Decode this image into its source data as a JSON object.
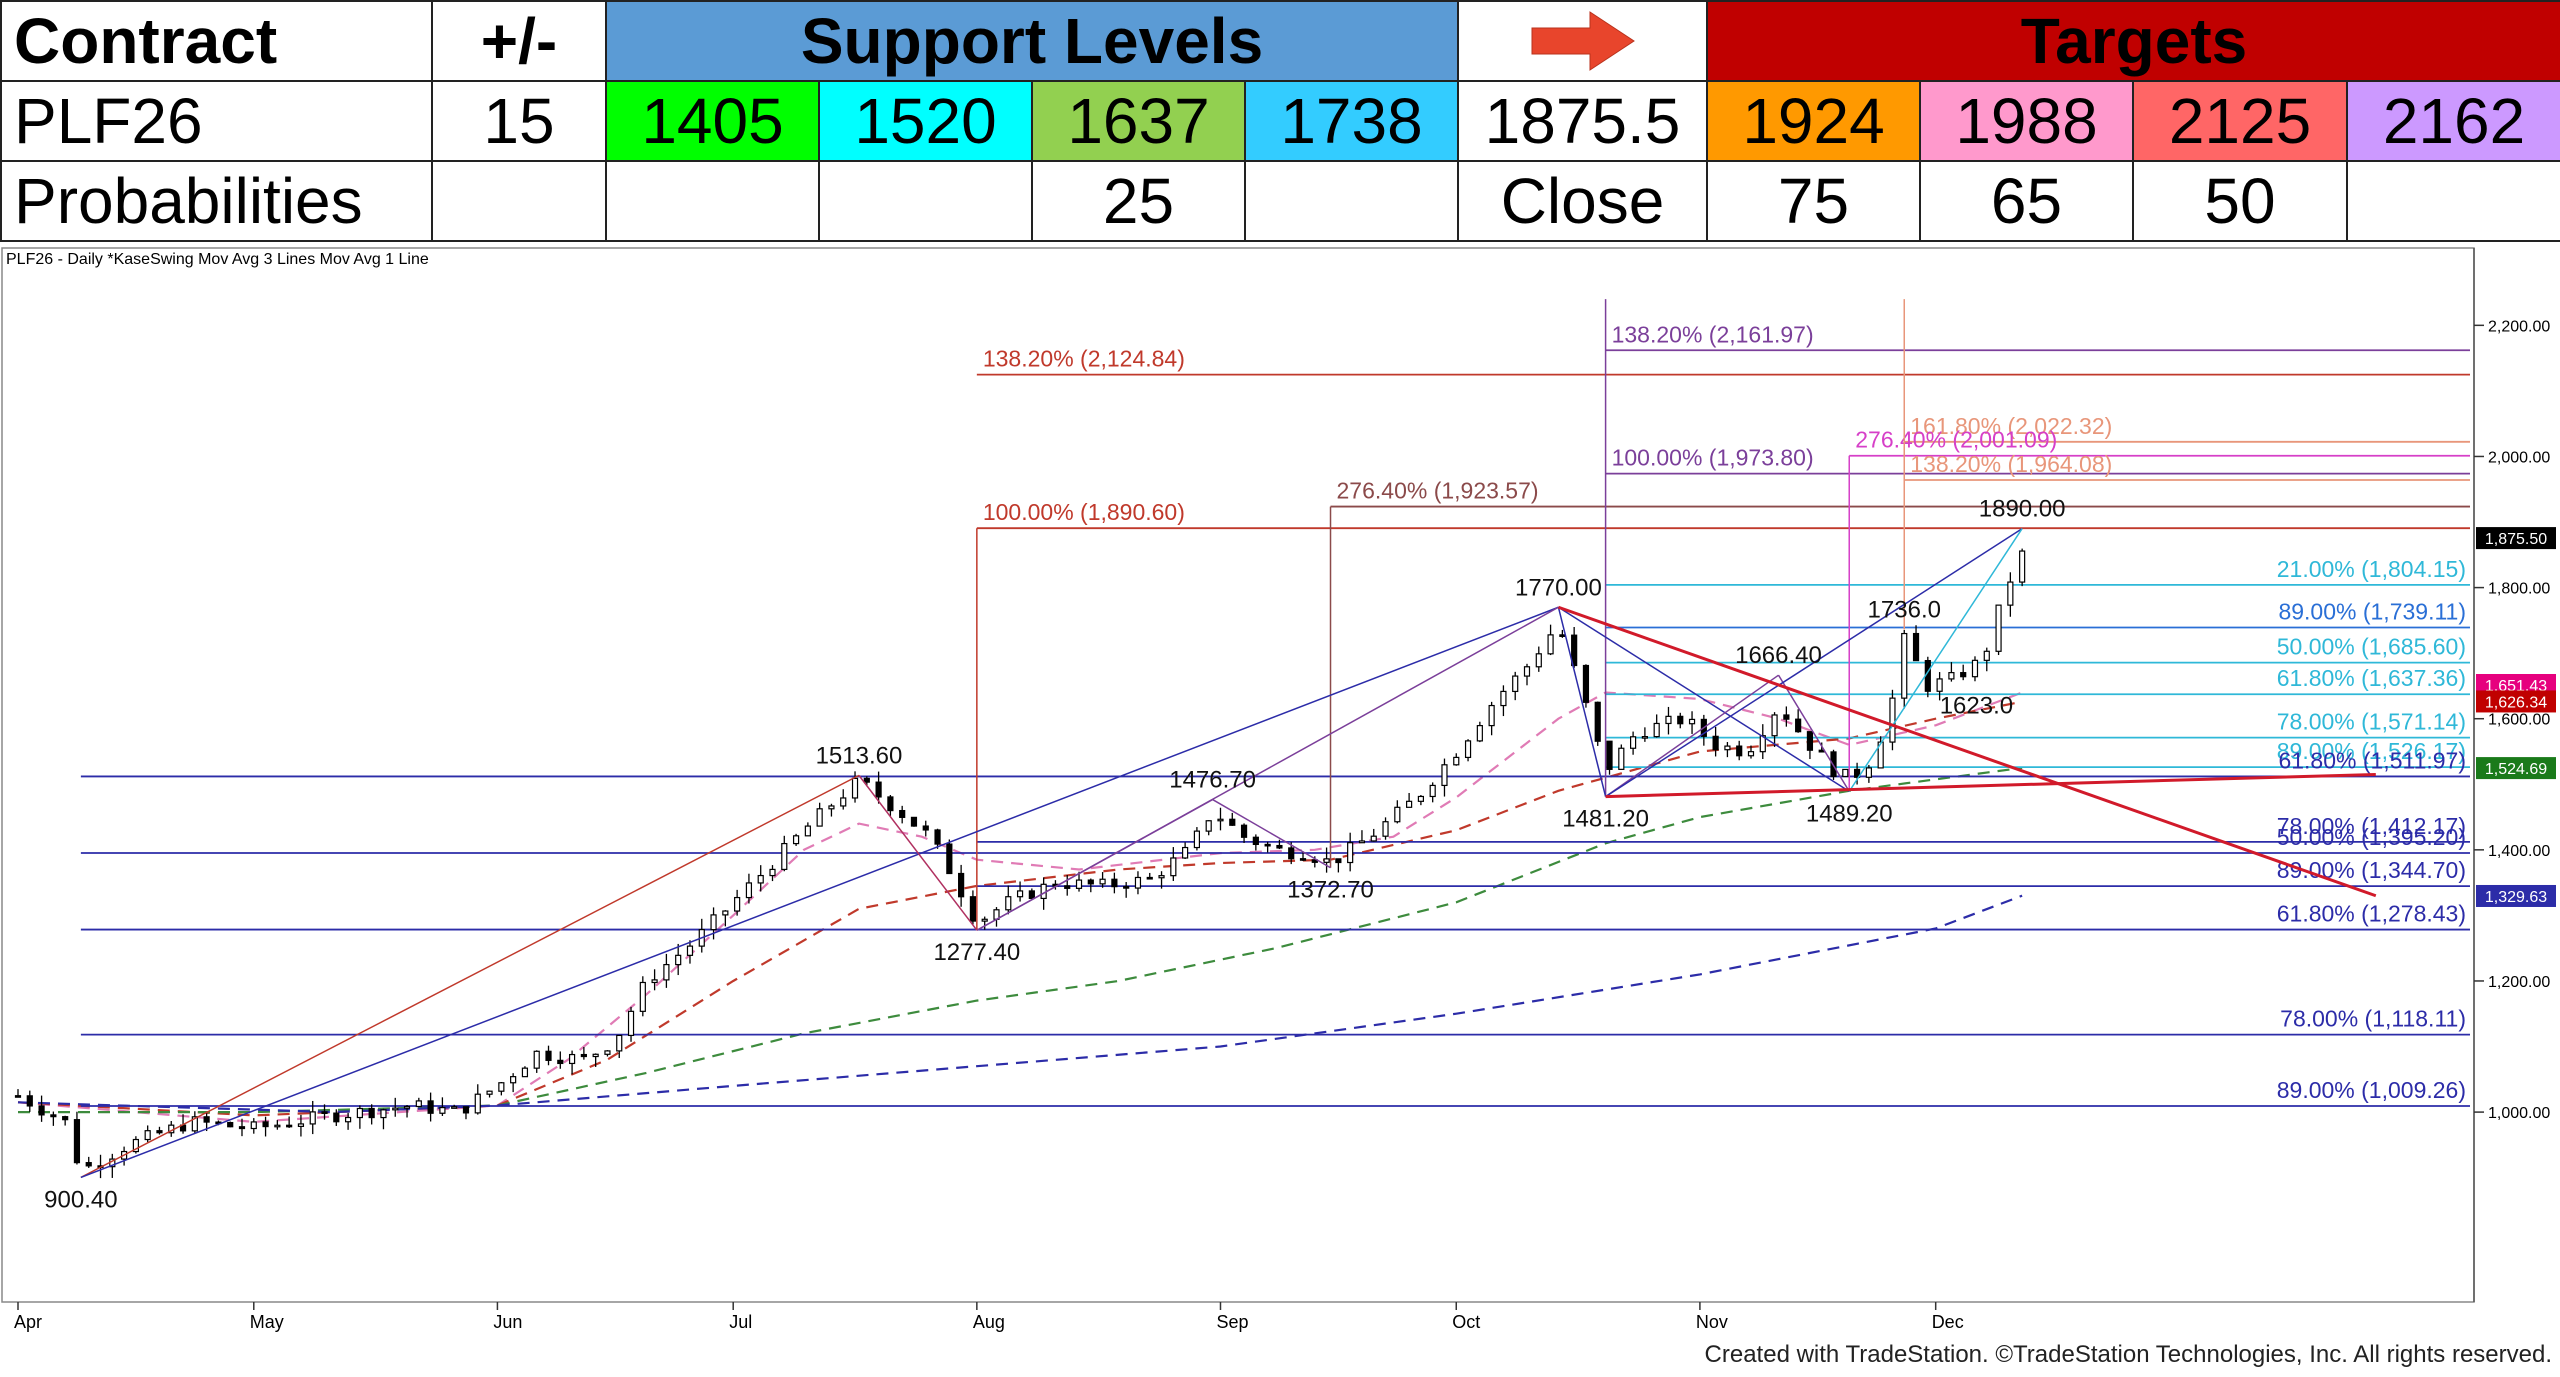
{
  "header": {
    "contract_label": "Contract",
    "plusminus_label": "+/-",
    "support_label": "Support Levels",
    "targets_label": "Targets",
    "arrow_icon": "right-arrow-icon",
    "contract": "PLF26",
    "change": "15",
    "supports": [
      "1405",
      "1520",
      "1637",
      "1738"
    ],
    "close_value": "1875.5",
    "targets": [
      "1924",
      "1988",
      "2125",
      "2162"
    ],
    "prob_label": "Probabilities",
    "support_probs": [
      "",
      "",
      "25",
      ""
    ],
    "close_label": "Close",
    "target_probs": [
      "75",
      "65",
      "50",
      ""
    ],
    "colors": {
      "support_band": "#5b9bd5",
      "targets_band": "#c00000",
      "supports": [
        "#00ff00",
        "#00ffff",
        "#92d050",
        "#33ccff"
      ],
      "targets": [
        "#ff9900",
        "#ff99cc",
        "#ff6666",
        "#cc99ff"
      ],
      "arrow": "#e8452c"
    }
  },
  "chart_data": {
    "type": "candlestick",
    "title": "PLF26 - Daily  *KaseSwing  Mov Avg 3 Lines  Mov Avg 1 Line",
    "footer": "Created with TradeStation. ©TradeStation Technologies, Inc. All rights reserved.",
    "ylim": [
      750,
      2260
    ],
    "y_ticks": [
      {
        "value": 1000,
        "label": "1,000.00"
      },
      {
        "value": 1200,
        "label": "1,200.00"
      },
      {
        "value": 1400,
        "label": "1,400.00"
      },
      {
        "value": 1600,
        "label": "1,600.00"
      },
      {
        "value": 1800,
        "label": "1,800.00"
      },
      {
        "value": 2000,
        "label": "2,000.00"
      },
      {
        "value": 2200,
        "label": "2,200.00"
      }
    ],
    "x_months": [
      {
        "label": "Apr",
        "day": 0
      },
      {
        "label": "May",
        "day": 30
      },
      {
        "label": "Jun",
        "day": 61
      },
      {
        "label": "Jul",
        "day": 91
      },
      {
        "label": "Aug",
        "day": 122
      },
      {
        "label": "Sep",
        "day": 153
      },
      {
        "label": "Oct",
        "day": 183
      },
      {
        "label": "Nov",
        "day": 214
      },
      {
        "label": "Dec",
        "day": 244
      }
    ],
    "last_day": 256,
    "price_badges": [
      {
        "value": 1875.5,
        "label": "1,875.50",
        "color": "#000000"
      },
      {
        "value": 1651.43,
        "label": "1,651.43",
        "color": "#e6007e"
      },
      {
        "value": 1626.34,
        "label": "1,626.34",
        "color": "#c00000"
      },
      {
        "value": 1524.69,
        "label": "1,524.69",
        "color": "#1a7a1a"
      },
      {
        "value": 1329.63,
        "label": "1,329.63",
        "color": "#2c2ca8"
      }
    ],
    "swing_labels": [
      {
        "day": 8,
        "value": 900.4,
        "label": "900.40",
        "pos": "below"
      },
      {
        "day": 107,
        "value": 1513.6,
        "label": "1513.60",
        "pos": "above"
      },
      {
        "day": 122,
        "value": 1277.4,
        "label": "1277.40",
        "pos": "below"
      },
      {
        "day": 152,
        "value": 1476.7,
        "label": "1476.70",
        "pos": "above"
      },
      {
        "day": 167,
        "value": 1372.7,
        "label": "1372.70",
        "pos": "below"
      },
      {
        "day": 196,
        "value": 1770.0,
        "label": "1770.00",
        "pos": "above"
      },
      {
        "day": 202,
        "value": 1481.2,
        "label": "1481.20",
        "pos": "below"
      },
      {
        "day": 224,
        "value": 1666.4,
        "label": "1666.40",
        "pos": "above"
      },
      {
        "day": 233,
        "value": 1489.2,
        "label": "1489.20",
        "pos": "below"
      },
      {
        "day": 240,
        "value": 1736.0,
        "label": "1736.0",
        "pos": "above"
      },
      {
        "day": 244,
        "value": 1623.0,
        "label": "1623.0",
        "pos": "right"
      },
      {
        "day": 255,
        "value": 1890.0,
        "label": "1890.00",
        "pos": "above"
      }
    ],
    "fib_levels": [
      {
        "value": 2161.97,
        "label": "138.20% (2,161.97)",
        "color": "#7b3f9a",
        "start_day": 202,
        "anchor": "left"
      },
      {
        "value": 2124.84,
        "label": "138.20% (2,124.84)",
        "color": "#c0392b",
        "start_day": 122,
        "anchor": "left"
      },
      {
        "value": 2022.32,
        "label": "161.80% (2,022.32)",
        "color": "#e8967a",
        "start_day": 240,
        "anchor": "left"
      },
      {
        "value": 2001.09,
        "label": "276.40% (2,001.09)",
        "color": "#d63fc8",
        "start_day": 233,
        "anchor": "left"
      },
      {
        "value": 1973.8,
        "label": "100.00% (1,973.80)",
        "color": "#7b3f9a",
        "start_day": 202,
        "anchor": "left"
      },
      {
        "value": 1964.08,
        "label": "138.20% (1,964.08)",
        "color": "#e8967a",
        "start_day": 240,
        "anchor": "left"
      },
      {
        "value": 1923.57,
        "label": "276.40% (1,923.57)",
        "color": "#8b4a4a",
        "start_day": 167,
        "anchor": "left"
      },
      {
        "value": 1890.6,
        "label": "100.00% (1,890.60)",
        "color": "#c0392b",
        "start_day": 122,
        "anchor": "left"
      },
      {
        "value": 1804.15,
        "label": "21.00% (1,804.15)",
        "color": "#2fb8d8",
        "start_day": 202,
        "anchor": "right"
      },
      {
        "value": 1739.11,
        "label": "89.00% (1,739.11)",
        "color": "#2a6fd6",
        "start_day": 202,
        "anchor": "right"
      },
      {
        "value": 1685.6,
        "label": "50.00% (1,685.60)",
        "color": "#2fb8d8",
        "start_day": 202,
        "anchor": "right"
      },
      {
        "value": 1637.36,
        "label": "61.80% (1,637.36)",
        "color": "#2fb8d8",
        "start_day": 202,
        "anchor": "right"
      },
      {
        "value": 1571.14,
        "label": "78.00% (1,571.14)",
        "color": "#2fb8d8",
        "start_day": 202,
        "anchor": "right"
      },
      {
        "value": 1526.17,
        "label": "89.00% (1,526.17)",
        "color": "#2fb8d8",
        "start_day": 202,
        "anchor": "right"
      },
      {
        "value": 1511.97,
        "label": "61.80% (1,511.97)",
        "color": "#2c2ca8",
        "start_day": 8,
        "anchor": "right"
      },
      {
        "value": 1412.17,
        "label": "78.00% (1,412.17)",
        "color": "#2c2ca8",
        "start_day": 122,
        "anchor": "right"
      },
      {
        "value": 1395.2,
        "label": "50.00% (1,395.20)",
        "color": "#2c2ca8",
        "start_day": 8,
        "anchor": "right"
      },
      {
        "value": 1344.7,
        "label": "89.00% (1,344.70)",
        "color": "#2c2ca8",
        "start_day": 122,
        "anchor": "right"
      },
      {
        "value": 1278.43,
        "label": "61.80% (1,278.43)",
        "color": "#2c2ca8",
        "start_day": 8,
        "anchor": "right"
      },
      {
        "value": 1118.11,
        "label": "78.00% (1,118.11)",
        "color": "#2c2ca8",
        "start_day": 8,
        "anchor": "right"
      },
      {
        "value": 1009.26,
        "label": "89.00% (1,009.26)",
        "color": "#2c2ca8",
        "start_day": 8,
        "anchor": "right"
      }
    ],
    "trend_lines": [
      {
        "from": [
          8,
          900.4
        ],
        "to": [
          107,
          1513.6
        ],
        "color": "#c0392b",
        "width": 1.5
      },
      {
        "from": [
          8,
          900.4
        ],
        "to": [
          196,
          1770.0
        ],
        "color": "#2c2ca8",
        "width": 1.5
      },
      {
        "from": [
          122,
          1277.4
        ],
        "to": [
          196,
          1770.0
        ],
        "color": "#7b3f9a",
        "width": 1.5
      },
      {
        "from": [
          122,
          1277.4
        ],
        "to": [
          152,
          1476.7
        ],
        "color": "#7b3f9a",
        "width": 1.5
      },
      {
        "from": [
          152,
          1476.7
        ],
        "to": [
          167,
          1372.7
        ],
        "color": "#7b3f9a",
        "width": 1.5
      },
      {
        "from": [
          107,
          1513.6
        ],
        "to": [
          122,
          1277.4
        ],
        "color": "#b03060",
        "width": 1.5
      },
      {
        "from": [
          196,
          1770.0
        ],
        "to": [
          202,
          1481.2
        ],
        "color": "#2c2ca8",
        "width": 1.5
      },
      {
        "from": [
          196,
          1770.0
        ],
        "to": [
          233,
          1489.2
        ],
        "color": "#2c2ca8",
        "width": 1.5
      },
      {
        "from": [
          202,
          1481.2
        ],
        "to": [
          224,
          1666.4
        ],
        "color": "#7b3f9a",
        "width": 1.5
      },
      {
        "from": [
          224,
          1666.4
        ],
        "to": [
          233,
          1489.2
        ],
        "color": "#7b3f9a",
        "width": 1.5
      },
      {
        "from": [
          202,
          1481.2
        ],
        "to": [
          255,
          1890.0
        ],
        "color": "#2c2ca8",
        "width": 1.5
      },
      {
        "from": [
          233,
          1489.2
        ],
        "to": [
          255,
          1890.0
        ],
        "color": "#2fb8d8",
        "width": 1.5
      },
      {
        "from": [
          196,
          1770.0
        ],
        "to": [
          300,
          1330.0
        ],
        "color": "#d11a2a",
        "width": 3
      },
      {
        "from": [
          202,
          1481.2
        ],
        "to": [
          300,
          1515.0
        ],
        "color": "#d11a2a",
        "width": 3
      }
    ],
    "moving_averages": [
      {
        "name": "ma-pink",
        "color": "#e07bb5",
        "dash": "12,8",
        "points": [
          [
            0,
            1015
          ],
          [
            30,
            985
          ],
          [
            61,
            1010
          ],
          [
            70,
            1080
          ],
          [
            80,
            1180
          ],
          [
            91,
            1300
          ],
          [
            100,
            1400
          ],
          [
            107,
            1440
          ],
          [
            115,
            1420
          ],
          [
            122,
            1385
          ],
          [
            135,
            1370
          ],
          [
            153,
            1395
          ],
          [
            165,
            1400
          ],
          [
            175,
            1420
          ],
          [
            183,
            1480
          ],
          [
            196,
            1600
          ],
          [
            202,
            1640
          ],
          [
            214,
            1630
          ],
          [
            224,
            1600
          ],
          [
            233,
            1560
          ],
          [
            244,
            1590
          ],
          [
            255,
            1640
          ]
        ]
      },
      {
        "name": "ma-red",
        "color": "#c0392b",
        "dash": "12,8",
        "points": [
          [
            0,
            1015
          ],
          [
            30,
            995
          ],
          [
            61,
            1010
          ],
          [
            75,
            1080
          ],
          [
            91,
            1200
          ],
          [
            107,
            1310
          ],
          [
            122,
            1345
          ],
          [
            140,
            1370
          ],
          [
            153,
            1380
          ],
          [
            167,
            1385
          ],
          [
            183,
            1430
          ],
          [
            196,
            1490
          ],
          [
            214,
            1550
          ],
          [
            233,
            1570
          ],
          [
            244,
            1600
          ],
          [
            255,
            1626
          ]
        ]
      },
      {
        "name": "ma-green",
        "color": "#3d8b3d",
        "dash": "12,8",
        "points": [
          [
            0,
            1000
          ],
          [
            30,
            1000
          ],
          [
            61,
            1010
          ],
          [
            80,
            1060
          ],
          [
            100,
            1120
          ],
          [
            122,
            1170
          ],
          [
            140,
            1200
          ],
          [
            160,
            1250
          ],
          [
            183,
            1320
          ],
          [
            202,
            1410
          ],
          [
            214,
            1450
          ],
          [
            233,
            1490
          ],
          [
            255,
            1525
          ]
        ]
      },
      {
        "name": "ma-blue",
        "color": "#2c2ca8",
        "dash": "12,8",
        "points": [
          [
            0,
            1015
          ],
          [
            40,
            1000
          ],
          [
            61,
            1010
          ],
          [
            91,
            1040
          ],
          [
            122,
            1070
          ],
          [
            153,
            1100
          ],
          [
            183,
            1150
          ],
          [
            214,
            1210
          ],
          [
            244,
            1280
          ],
          [
            255,
            1330
          ]
        ]
      }
    ],
    "price_path": [
      [
        0,
        1025
      ],
      [
        6,
        985
      ],
      [
        8,
        910
      ],
      [
        14,
        950
      ],
      [
        22,
        985
      ],
      [
        30,
        975
      ],
      [
        40,
        995
      ],
      [
        50,
        1010
      ],
      [
        56,
        1000
      ],
      [
        61,
        1040
      ],
      [
        66,
        1090
      ],
      [
        72,
        1080
      ],
      [
        76,
        1110
      ],
      [
        80,
        1200
      ],
      [
        86,
        1260
      ],
      [
        91,
        1320
      ],
      [
        96,
        1380
      ],
      [
        100,
        1430
      ],
      [
        104,
        1475
      ],
      [
        107,
        1505
      ],
      [
        112,
        1460
      ],
      [
        116,
        1420
      ],
      [
        119,
        1360
      ],
      [
        122,
        1290
      ],
      [
        126,
        1320
      ],
      [
        132,
        1350
      ],
      [
        138,
        1345
      ],
      [
        144,
        1355
      ],
      [
        149,
        1400
      ],
      [
        152,
        1460
      ],
      [
        156,
        1420
      ],
      [
        160,
        1400
      ],
      [
        164,
        1395
      ],
      [
        167,
        1380
      ],
      [
        172,
        1420
      ],
      [
        178,
        1480
      ],
      [
        183,
        1550
      ],
      [
        188,
        1630
      ],
      [
        192,
        1680
      ],
      [
        196,
        1745
      ],
      [
        199,
        1640
      ],
      [
        202,
        1520
      ],
      [
        206,
        1580
      ],
      [
        212,
        1600
      ],
      [
        216,
        1560
      ],
      [
        220,
        1550
      ],
      [
        224,
        1620
      ],
      [
        228,
        1560
      ],
      [
        232,
        1510
      ],
      [
        235,
        1520
      ],
      [
        238,
        1600
      ],
      [
        240,
        1720
      ],
      [
        243,
        1650
      ],
      [
        246,
        1660
      ],
      [
        250,
        1690
      ],
      [
        253,
        1800
      ],
      [
        256,
        1875
      ]
    ]
  }
}
